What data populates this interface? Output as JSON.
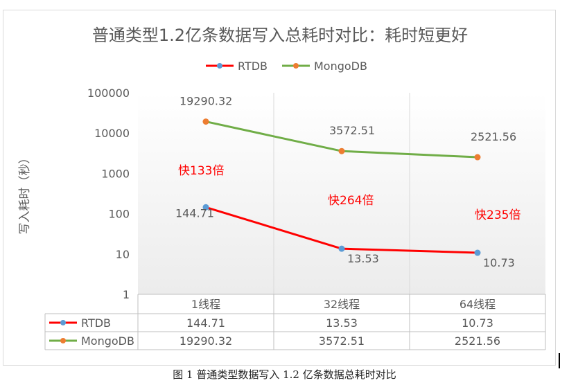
{
  "chart_data": {
    "type": "line",
    "title": "普通类型1.2亿条数据写入总耗时对比：耗时短更好",
    "ylabel": "写入耗时（秒）",
    "yscale": "log",
    "ylim": [
      1,
      100000
    ],
    "yticks": [
      "100000",
      "10000",
      "1000",
      "100",
      "10",
      "1"
    ],
    "grid": false,
    "legend": "top",
    "categories": [
      "1线程",
      "32线程",
      "64线程"
    ],
    "series": [
      {
        "name": "RTDB",
        "values": [
          144.71,
          13.53,
          10.73
        ],
        "labels": [
          "144.71",
          "13.53",
          "10.73"
        ],
        "color": "#ff0000",
        "marker_color": "#5b9bd5"
      },
      {
        "name": "MongoDB",
        "values": [
          19290.32,
          3572.51,
          2521.56
        ],
        "labels": [
          "19290.32",
          "3572.51",
          "2521.56"
        ],
        "color": "#70ad47",
        "marker_color": "#ed7d31"
      }
    ],
    "annotations": [
      "快133倍",
      "快264倍",
      "快235倍"
    ],
    "annotation_color": "#ff0000"
  },
  "caption": "图 1  普通类型数据写入 1.2 亿条数据总耗时对比"
}
